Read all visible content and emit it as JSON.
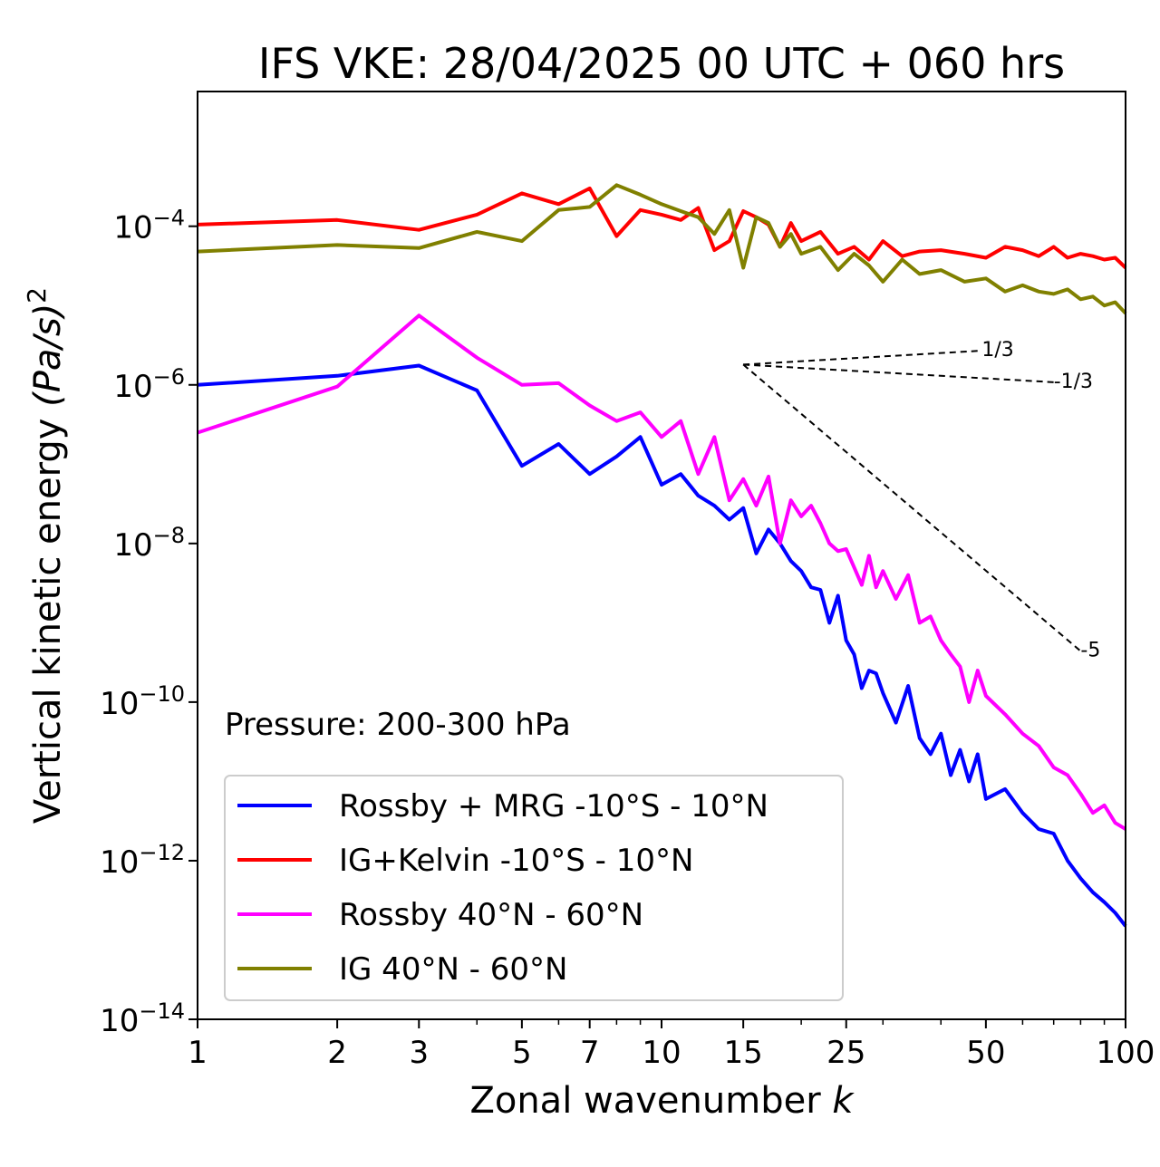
{
  "chart_data": {
    "type": "line",
    "title": "IFS VKE: 28/04/2025 00 UTC + 060 hrs",
    "xlabel": "Zonal wavenumber",
    "xlabel_var": "k",
    "ylabel": "Vertical kinetic energy",
    "ylabel_units": "(Pa/s)",
    "ylabel_exp": "2",
    "x_scale": "log",
    "y_scale": "log",
    "xlim": [
      1,
      100
    ],
    "ylim": [
      1e-14,
      0.005
    ],
    "x_ticks": [
      1,
      2,
      3,
      5,
      7,
      10,
      15,
      25,
      50,
      100
    ],
    "x_tick_labels": [
      "1",
      "2",
      "3",
      "5",
      "7",
      "10",
      "15",
      "25",
      "50",
      "100"
    ],
    "y_ticks": [
      0.0001,
      1e-06,
      1e-08,
      1e-10,
      1e-12,
      1e-14
    ],
    "y_tick_labels": [
      {
        "base": "10",
        "exp": "−4"
      },
      {
        "base": "10",
        "exp": "−6"
      },
      {
        "base": "10",
        "exp": "−8"
      },
      {
        "base": "10",
        "exp": "−10"
      },
      {
        "base": "10",
        "exp": "−12"
      },
      {
        "base": "10",
        "exp": "−14"
      }
    ],
    "annotation": "Pressure: 200-300 hPa",
    "legend_position": "lower-left",
    "grid": false,
    "series": [
      {
        "name": "Rossby + MRG -10°S - 10°N",
        "color": "#0000ff",
        "x": [
          1,
          2,
          3,
          4,
          5,
          6,
          7,
          8,
          9,
          10,
          11,
          12,
          13,
          14,
          15,
          16,
          17,
          18,
          19,
          20,
          21,
          22,
          23,
          24,
          25,
          26,
          27,
          28,
          29,
          30,
          32,
          34,
          36,
          38,
          40,
          42,
          44,
          46,
          48,
          50,
          55,
          60,
          65,
          70,
          75,
          80,
          85,
          90,
          95,
          100
        ],
        "y": [
          1e-06,
          1.3e-06,
          1.75e-06,
          8.5e-07,
          9.5e-08,
          1.8e-07,
          7.5e-08,
          1.25e-07,
          2.2e-07,
          5.5e-08,
          7.5e-08,
          4e-08,
          3e-08,
          2e-08,
          2.8e-08,
          7.5e-09,
          1.5e-08,
          1e-08,
          6e-09,
          4.5e-09,
          2.8e-09,
          2.6e-09,
          1e-09,
          2.2e-09,
          6e-10,
          4e-10,
          1.5e-10,
          2.5e-10,
          2.3e-10,
          1.3e-10,
          5.5e-11,
          1.6e-10,
          3.5e-11,
          2.2e-11,
          4e-11,
          1.2e-11,
          2.5e-11,
          1e-11,
          2.2e-11,
          6e-12,
          8e-12,
          4e-12,
          2.5e-12,
          2.2e-12,
          1e-12,
          6e-13,
          4e-13,
          3e-13,
          2.2e-13,
          1.5e-13
        ]
      },
      {
        "name": "IG+Kelvin -10°S - 10°N",
        "color": "#ff0000",
        "x": [
          1,
          2,
          3,
          4,
          5,
          6,
          7,
          8,
          9,
          10,
          11,
          12,
          13,
          14,
          15,
          16,
          17,
          18,
          19,
          20,
          22,
          24,
          26,
          28,
          30,
          33,
          36,
          40,
          45,
          50,
          55,
          60,
          65,
          70,
          75,
          80,
          85,
          90,
          95,
          100
        ],
        "y": [
          0.000105,
          0.00012,
          9e-05,
          0.00014,
          0.00026,
          0.00019,
          0.0003,
          7.5e-05,
          0.00016,
          0.00014,
          0.00012,
          0.00017,
          5e-05,
          6.5e-05,
          0.000155,
          0.00013,
          0.000105,
          5.5e-05,
          0.00011,
          6.5e-05,
          8.5e-05,
          4.5e-05,
          5.5e-05,
          3.8e-05,
          6.5e-05,
          4.2e-05,
          4.8e-05,
          5e-05,
          4.5e-05,
          4e-05,
          5.5e-05,
          5e-05,
          4.2e-05,
          5.5e-05,
          4e-05,
          4.5e-05,
          4.2e-05,
          3.8e-05,
          4e-05,
          3e-05
        ]
      },
      {
        "name": "Rossby 40°N - 60°N",
        "color": "#ff00ff",
        "x": [
          1,
          2,
          3,
          4,
          5,
          6,
          7,
          8,
          9,
          10,
          11,
          12,
          13,
          14,
          15,
          16,
          17,
          18,
          19,
          20,
          21,
          22,
          23,
          24,
          25,
          26,
          27,
          28,
          29,
          30,
          32,
          34,
          36,
          38,
          40,
          42,
          44,
          46,
          48,
          50,
          55,
          60,
          65,
          70,
          75,
          80,
          85,
          90,
          95,
          100
        ],
        "y": [
          2.5e-07,
          9.5e-07,
          7.5e-06,
          2.2e-06,
          1e-06,
          1.05e-06,
          5.5e-07,
          3.5e-07,
          4.5e-07,
          2.2e-07,
          3.5e-07,
          7.5e-08,
          2.2e-07,
          3.5e-08,
          6.5e-08,
          3e-08,
          7e-08,
          1e-08,
          3.5e-08,
          2.2e-08,
          3e-08,
          1.8e-08,
          1e-08,
          8e-09,
          8.5e-09,
          5e-09,
          3e-09,
          7e-09,
          2.8e-09,
          4.5e-09,
          2e-09,
          4e-09,
          1e-09,
          1.2e-09,
          6e-10,
          4e-10,
          2.8e-10,
          1e-10,
          2.5e-10,
          1.2e-10,
          7e-11,
          4e-11,
          2.8e-11,
          1.5e-11,
          1.2e-11,
          7e-12,
          4e-12,
          5e-12,
          3e-12,
          2.5e-12
        ]
      },
      {
        "name": "IG 40°N - 60°N",
        "color": "#808000",
        "x": [
          1,
          2,
          3,
          4,
          5,
          6,
          7,
          8,
          9,
          10,
          11,
          12,
          13,
          14,
          15,
          16,
          17,
          18,
          19,
          20,
          22,
          24,
          26,
          28,
          30,
          33,
          36,
          40,
          45,
          50,
          55,
          60,
          65,
          70,
          75,
          80,
          85,
          90,
          95,
          100
        ],
        "y": [
          4.8e-05,
          5.8e-05,
          5.3e-05,
          8.5e-05,
          6.5e-05,
          0.00016,
          0.000175,
          0.00033,
          0.00025,
          0.00019,
          0.000155,
          0.00013,
          8e-05,
          0.00016,
          3e-05,
          0.00013,
          0.00011,
          5.5e-05,
          8e-05,
          4.5e-05,
          5.5e-05,
          2.8e-05,
          4.5e-05,
          3.2e-05,
          2e-05,
          3.8e-05,
          2.5e-05,
          2.8e-05,
          2e-05,
          2.2e-05,
          1.5e-05,
          1.8e-05,
          1.5e-05,
          1.4e-05,
          1.6e-05,
          1.2e-05,
          1.3e-05,
          1e-05,
          1.1e-05,
          8e-06
        ]
      }
    ],
    "reference_lines": [
      {
        "label": "1/3",
        "slope": 0.3333,
        "x": [
          15,
          49
        ],
        "y": [
          1.8e-06,
          2.7e-06
        ]
      },
      {
        "label": "-1/3",
        "slope": -0.3333,
        "x": [
          15,
          70
        ],
        "y": [
          1.8e-06,
          1.08e-06
        ]
      },
      {
        "label": "-5",
        "slope": -5,
        "x": [
          15,
          80
        ],
        "y": [
          1.8e-06,
          4.4e-10
        ]
      }
    ]
  }
}
